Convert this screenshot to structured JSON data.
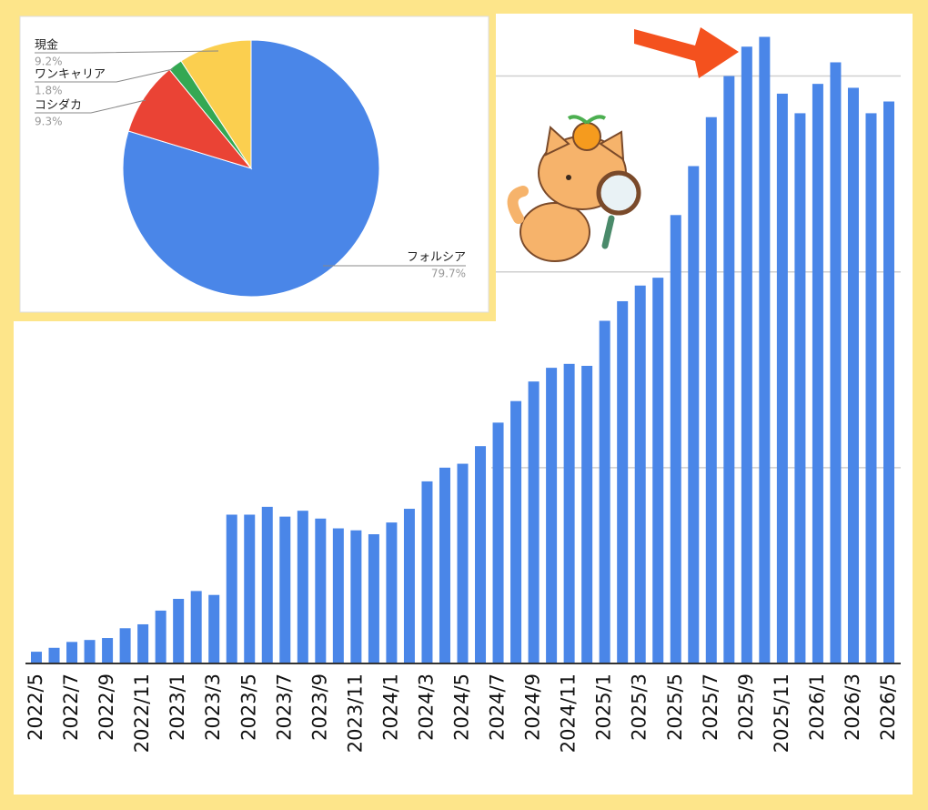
{
  "chart_data": [
    {
      "type": "bar",
      "color": "#4a86e8",
      "categories": [
        "2022/5",
        null,
        "2022/7",
        null,
        "2022/9",
        null,
        "2022/11",
        null,
        "2023/1",
        null,
        "2023/3",
        null,
        "2023/5",
        null,
        "2023/7",
        null,
        "2023/9",
        null,
        "2023/11",
        null,
        "2024/1",
        null,
        "2024/3",
        null,
        "2024/5",
        null,
        "2024/7",
        null,
        "2024/9",
        null,
        "2024/11",
        null,
        "2025/1",
        null,
        "2025/3",
        null,
        "2025/5",
        null,
        "2025/7",
        null,
        "2025/9",
        null,
        "2025/11",
        null,
        "2026/1",
        null,
        "2026/3",
        null,
        "2026/5"
      ],
      "values": [
        0.06,
        0.08,
        0.11,
        0.12,
        0.13,
        0.18,
        0.2,
        0.27,
        0.33,
        0.37,
        0.35,
        0.76,
        0.76,
        0.8,
        0.75,
        0.78,
        0.74,
        0.69,
        0.68,
        0.66,
        0.72,
        0.79,
        0.93,
        1.0,
        1.02,
        1.11,
        1.23,
        1.34,
        1.44,
        1.51,
        1.53,
        1.52,
        1.75,
        1.85,
        1.93,
        1.97,
        2.29,
        2.54,
        2.79,
        3.0,
        3.15,
        3.2,
        2.91,
        2.81,
        2.96,
        3.07,
        2.94,
        2.81,
        2.87
      ],
      "ylim": [
        0,
        3.3
      ],
      "ygrid": [
        1,
        2,
        3
      ],
      "grid": true
    },
    {
      "type": "pie",
      "categories": [
        "フォルシア",
        "コシダカ",
        "ワンキャリア",
        "現金"
      ],
      "values": [
        79.7,
        9.3,
        1.8,
        9.2
      ],
      "value_labels": [
        "79.7%",
        "9.3%",
        "1.8%",
        "9.2%"
      ],
      "colors": [
        "#4a86e8",
        "#ea4335",
        "#34a853",
        "#fbcf4f"
      ]
    }
  ]
}
